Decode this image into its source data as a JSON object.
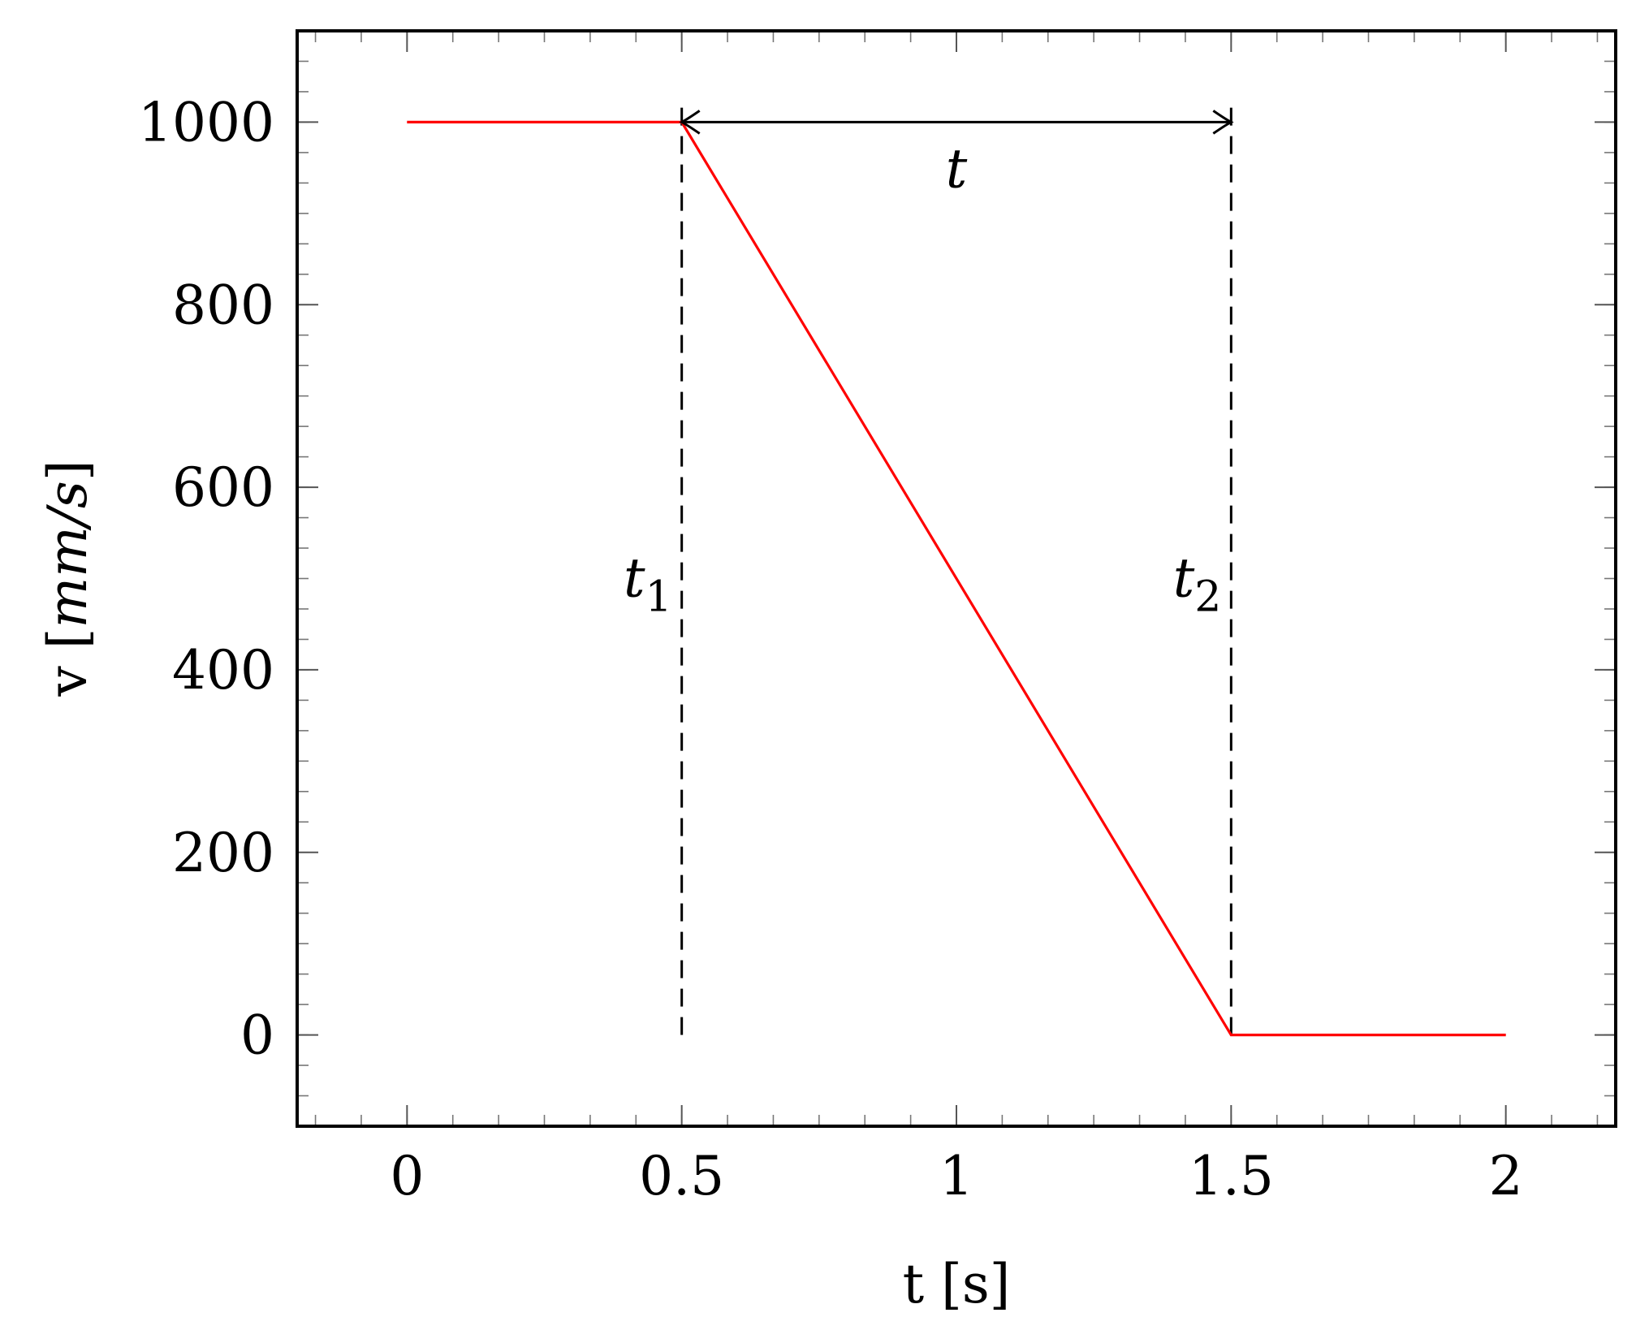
{
  "chart_data": {
    "type": "line",
    "title": "",
    "xlabel": "t [s]",
    "ylabel": "v [mm/s]",
    "xlim": [
      -0.2,
      2.2
    ],
    "ylim": [
      -100,
      1100
    ],
    "grid": false,
    "x_ticks": [
      0,
      0.5,
      1,
      1.5,
      2
    ],
    "x_tick_labels": [
      "0",
      "0.5",
      "1",
      "1.5",
      "2"
    ],
    "y_ticks": [
      0,
      200,
      400,
      600,
      800,
      1000
    ],
    "y_tick_labels": [
      "0",
      "200",
      "400",
      "600",
      "800",
      "1000"
    ],
    "x_minor_step": 0.08333333,
    "y_minor_step": 33.3333333,
    "series": [
      {
        "color": "#ff0000",
        "x": [
          0,
          0.5,
          1.5,
          2
        ],
        "y": [
          1000,
          1000,
          0,
          0
        ]
      }
    ],
    "vertical_markers": [
      {
        "x": 0.5,
        "y_from": 0,
        "y_to": 1000,
        "style": "dashed",
        "label": "t",
        "subscript": "1",
        "label_y": 500
      },
      {
        "x": 1.5,
        "y_from": 0,
        "y_to": 1000,
        "style": "dashed",
        "label": "t",
        "subscript": "2",
        "label_y": 500
      }
    ],
    "interval_arrow": {
      "x_from": 0.5,
      "x_to": 1.5,
      "y": 1000,
      "label": "t"
    }
  }
}
